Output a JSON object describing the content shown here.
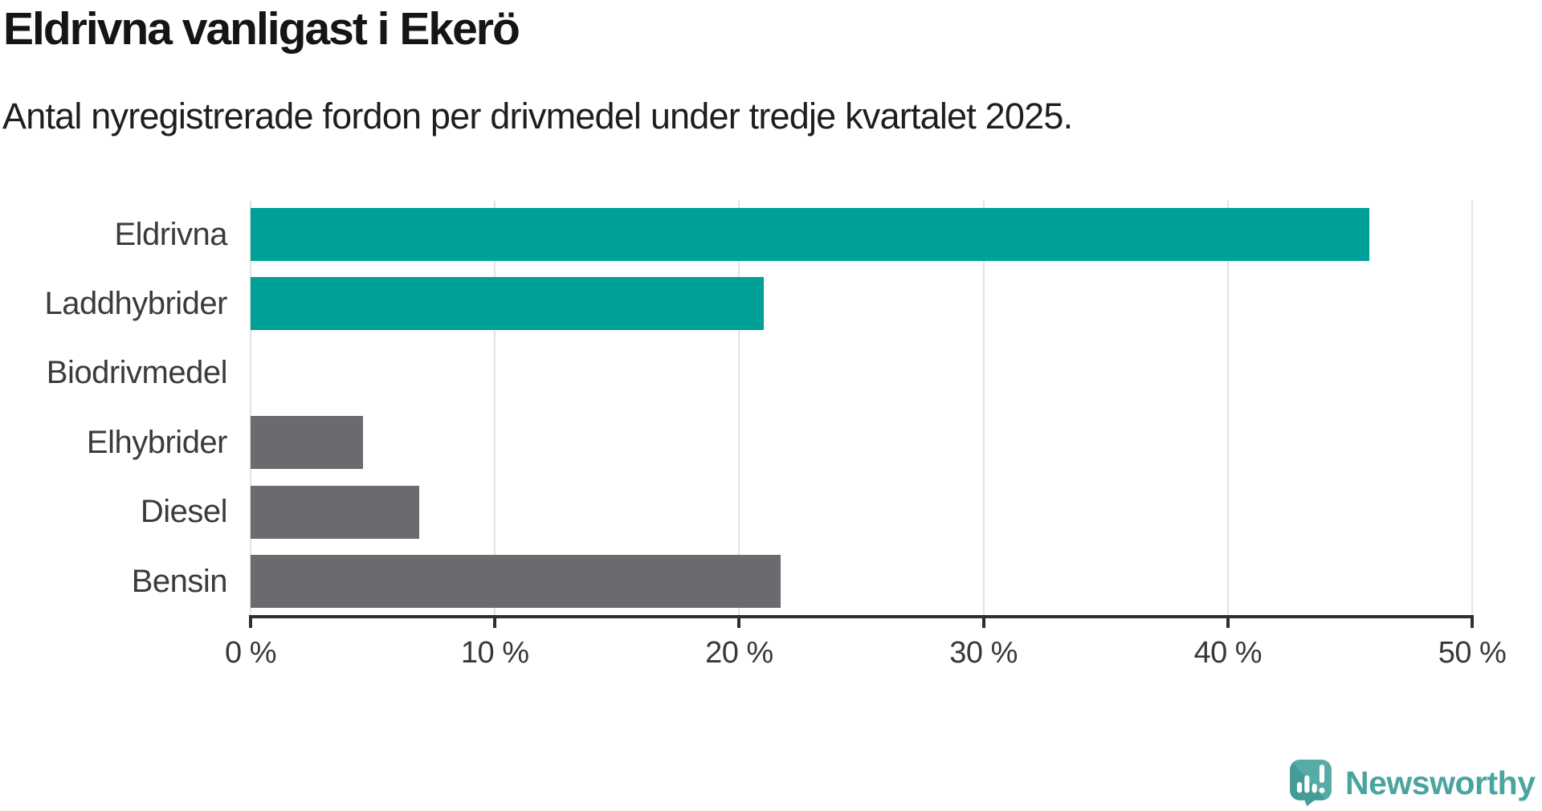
{
  "chart_data": {
    "type": "bar",
    "orientation": "horizontal",
    "title": "Eldrivna vanligast i Ekerö",
    "subtitle": "Antal nyregistrerade fordon per drivmedel under tredje kvartalet 2025.",
    "categories": [
      "Eldrivna",
      "Laddhybrider",
      "Biodrivmedel",
      "Elhybrider",
      "Diesel",
      "Bensin"
    ],
    "values": [
      45.8,
      21.0,
      0,
      4.6,
      6.9,
      21.7
    ],
    "unit": "%",
    "bar_colors": [
      "#00a09a",
      "#00a09a",
      "#00a09a",
      "#6b6b6f",
      "#6b6b6f",
      "#6b6b6f"
    ],
    "xlim": [
      0,
      50
    ],
    "x_ticks": [
      0,
      10,
      20,
      30,
      40,
      50
    ],
    "x_tick_labels": [
      "0 %",
      "10 %",
      "20 %",
      "30 %",
      "40 %",
      "50 %"
    ],
    "grid": true,
    "legend": false
  },
  "colors": {
    "accent_teal": "#00a09a",
    "neutral_gray": "#6b6b6f",
    "gridline": "#e2e2e2",
    "axis": "#2f2f2f",
    "title_text": "#151515",
    "label_text": "#3b3b3b"
  },
  "branding": {
    "logo_text": "Newsworthy",
    "logo_color": "#4aa49f",
    "logo_icon": "newsworthy-speech-bubble-bar-chart-icon",
    "logo_icon_dark": "#459b95",
    "logo_icon_light": "#55aba5"
  }
}
